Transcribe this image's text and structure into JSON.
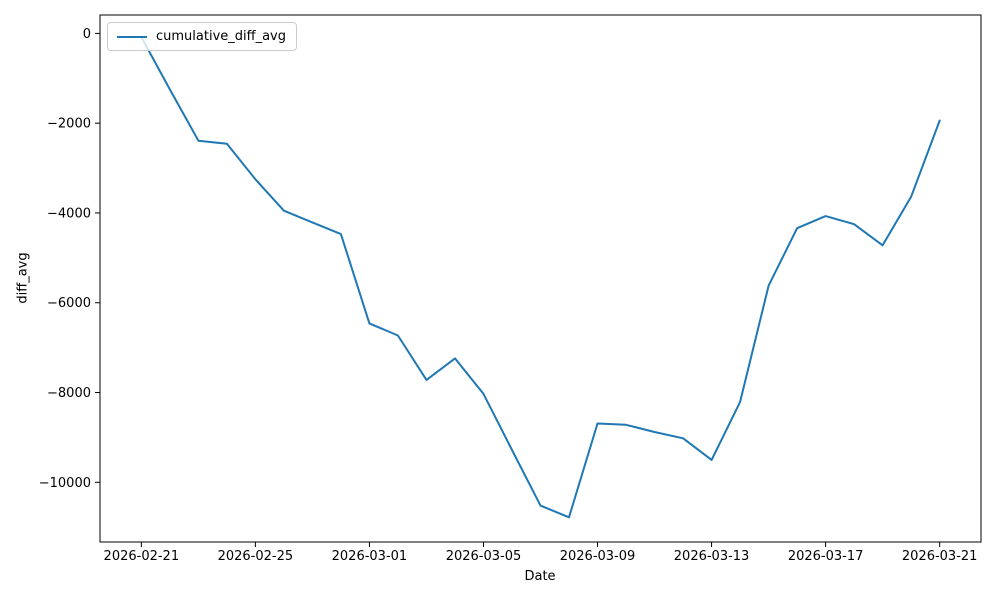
{
  "chart_data": {
    "type": "line",
    "title": "",
    "xlabel": "Date",
    "ylabel": "diff_avg",
    "grid": false,
    "legend_position": "upper left",
    "line_color": "#1f77b4",
    "x": [
      "2026-02-21",
      "2026-02-22",
      "2026-02-23",
      "2026-02-24",
      "2026-02-25",
      "2026-02-26",
      "2026-02-27",
      "2026-02-28",
      "2026-03-01",
      "2026-03-02",
      "2026-03-03",
      "2026-03-04",
      "2026-03-05",
      "2026-03-06",
      "2026-03-07",
      "2026-03-08",
      "2026-03-09",
      "2026-03-10",
      "2026-03-11",
      "2026-03-12",
      "2026-03-13",
      "2026-03-14",
      "2026-03-15",
      "2026-03-16",
      "2026-03-17",
      "2026-03-18",
      "2026-03-19",
      "2026-03-20",
      "2026-03-21"
    ],
    "series": [
      {
        "name": "cumulative_diff_avg",
        "values": [
          -80,
          -1250,
          -2390,
          -2460,
          -3250,
          -3950,
          -4210,
          -4470,
          -6460,
          -6730,
          -7720,
          -7240,
          -8030,
          -9280,
          -10520,
          -10780,
          -8690,
          -8720,
          -8880,
          -9020,
          -9500,
          -8210,
          -5620,
          -4340,
          -4070,
          -4250,
          -4720,
          -3640,
          -1940
        ]
      }
    ],
    "x_ticks": {
      "day_indices": [
        0,
        4,
        8,
        12,
        16,
        20,
        24,
        28
      ],
      "labels": [
        "2026-02-21",
        "2026-02-25",
        "2026-03-01",
        "2026-03-05",
        "2026-03-09",
        "2026-03-13",
        "2026-03-17",
        "2026-03-21"
      ]
    },
    "y_ticks": {
      "values": [
        0,
        -2000,
        -4000,
        -6000,
        -8000,
        -10000
      ],
      "labels": [
        "0",
        "−2000",
        "−4000",
        "−6000",
        "−8000",
        "−10000"
      ]
    },
    "xlim_day_indices": [
      -1.45,
      29.45
    ],
    "ylim": [
      -11330,
      410
    ],
    "axis_color": "#000000"
  }
}
